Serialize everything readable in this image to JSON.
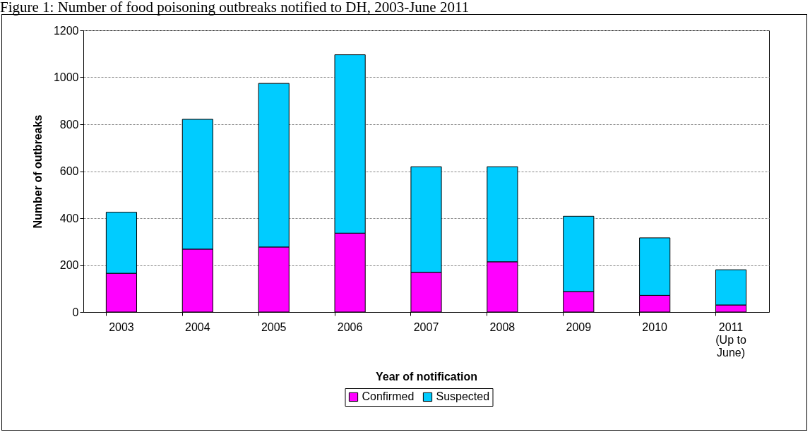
{
  "chart_data": {
    "type": "bar",
    "title": "Figure 1: Number of food poisoning outbreaks notified to DH, 2003-June 2011",
    "xlabel": "Year of notification",
    "ylabel": "Number of outbreaks",
    "categories": [
      "2003",
      "2004",
      "2005",
      "2006",
      "2007",
      "2008",
      "2009",
      "2010",
      "2011\n(Up to\nJune)"
    ],
    "series": [
      {
        "name": "Confirmed",
        "color": "#ff00ff",
        "values": [
          165,
          268,
          277,
          336,
          169,
          214,
          87,
          71,
          30
        ]
      },
      {
        "name": "Suspected",
        "color": "#00ccff",
        "values": [
          260,
          553,
          697,
          760,
          450,
          405,
          321,
          245,
          150
        ]
      }
    ],
    "stacked": true,
    "ylim": [
      0,
      1200
    ],
    "yticks": [
      0,
      200,
      400,
      600,
      800,
      1000,
      1200
    ],
    "grid": "y",
    "legend": "bottom"
  }
}
